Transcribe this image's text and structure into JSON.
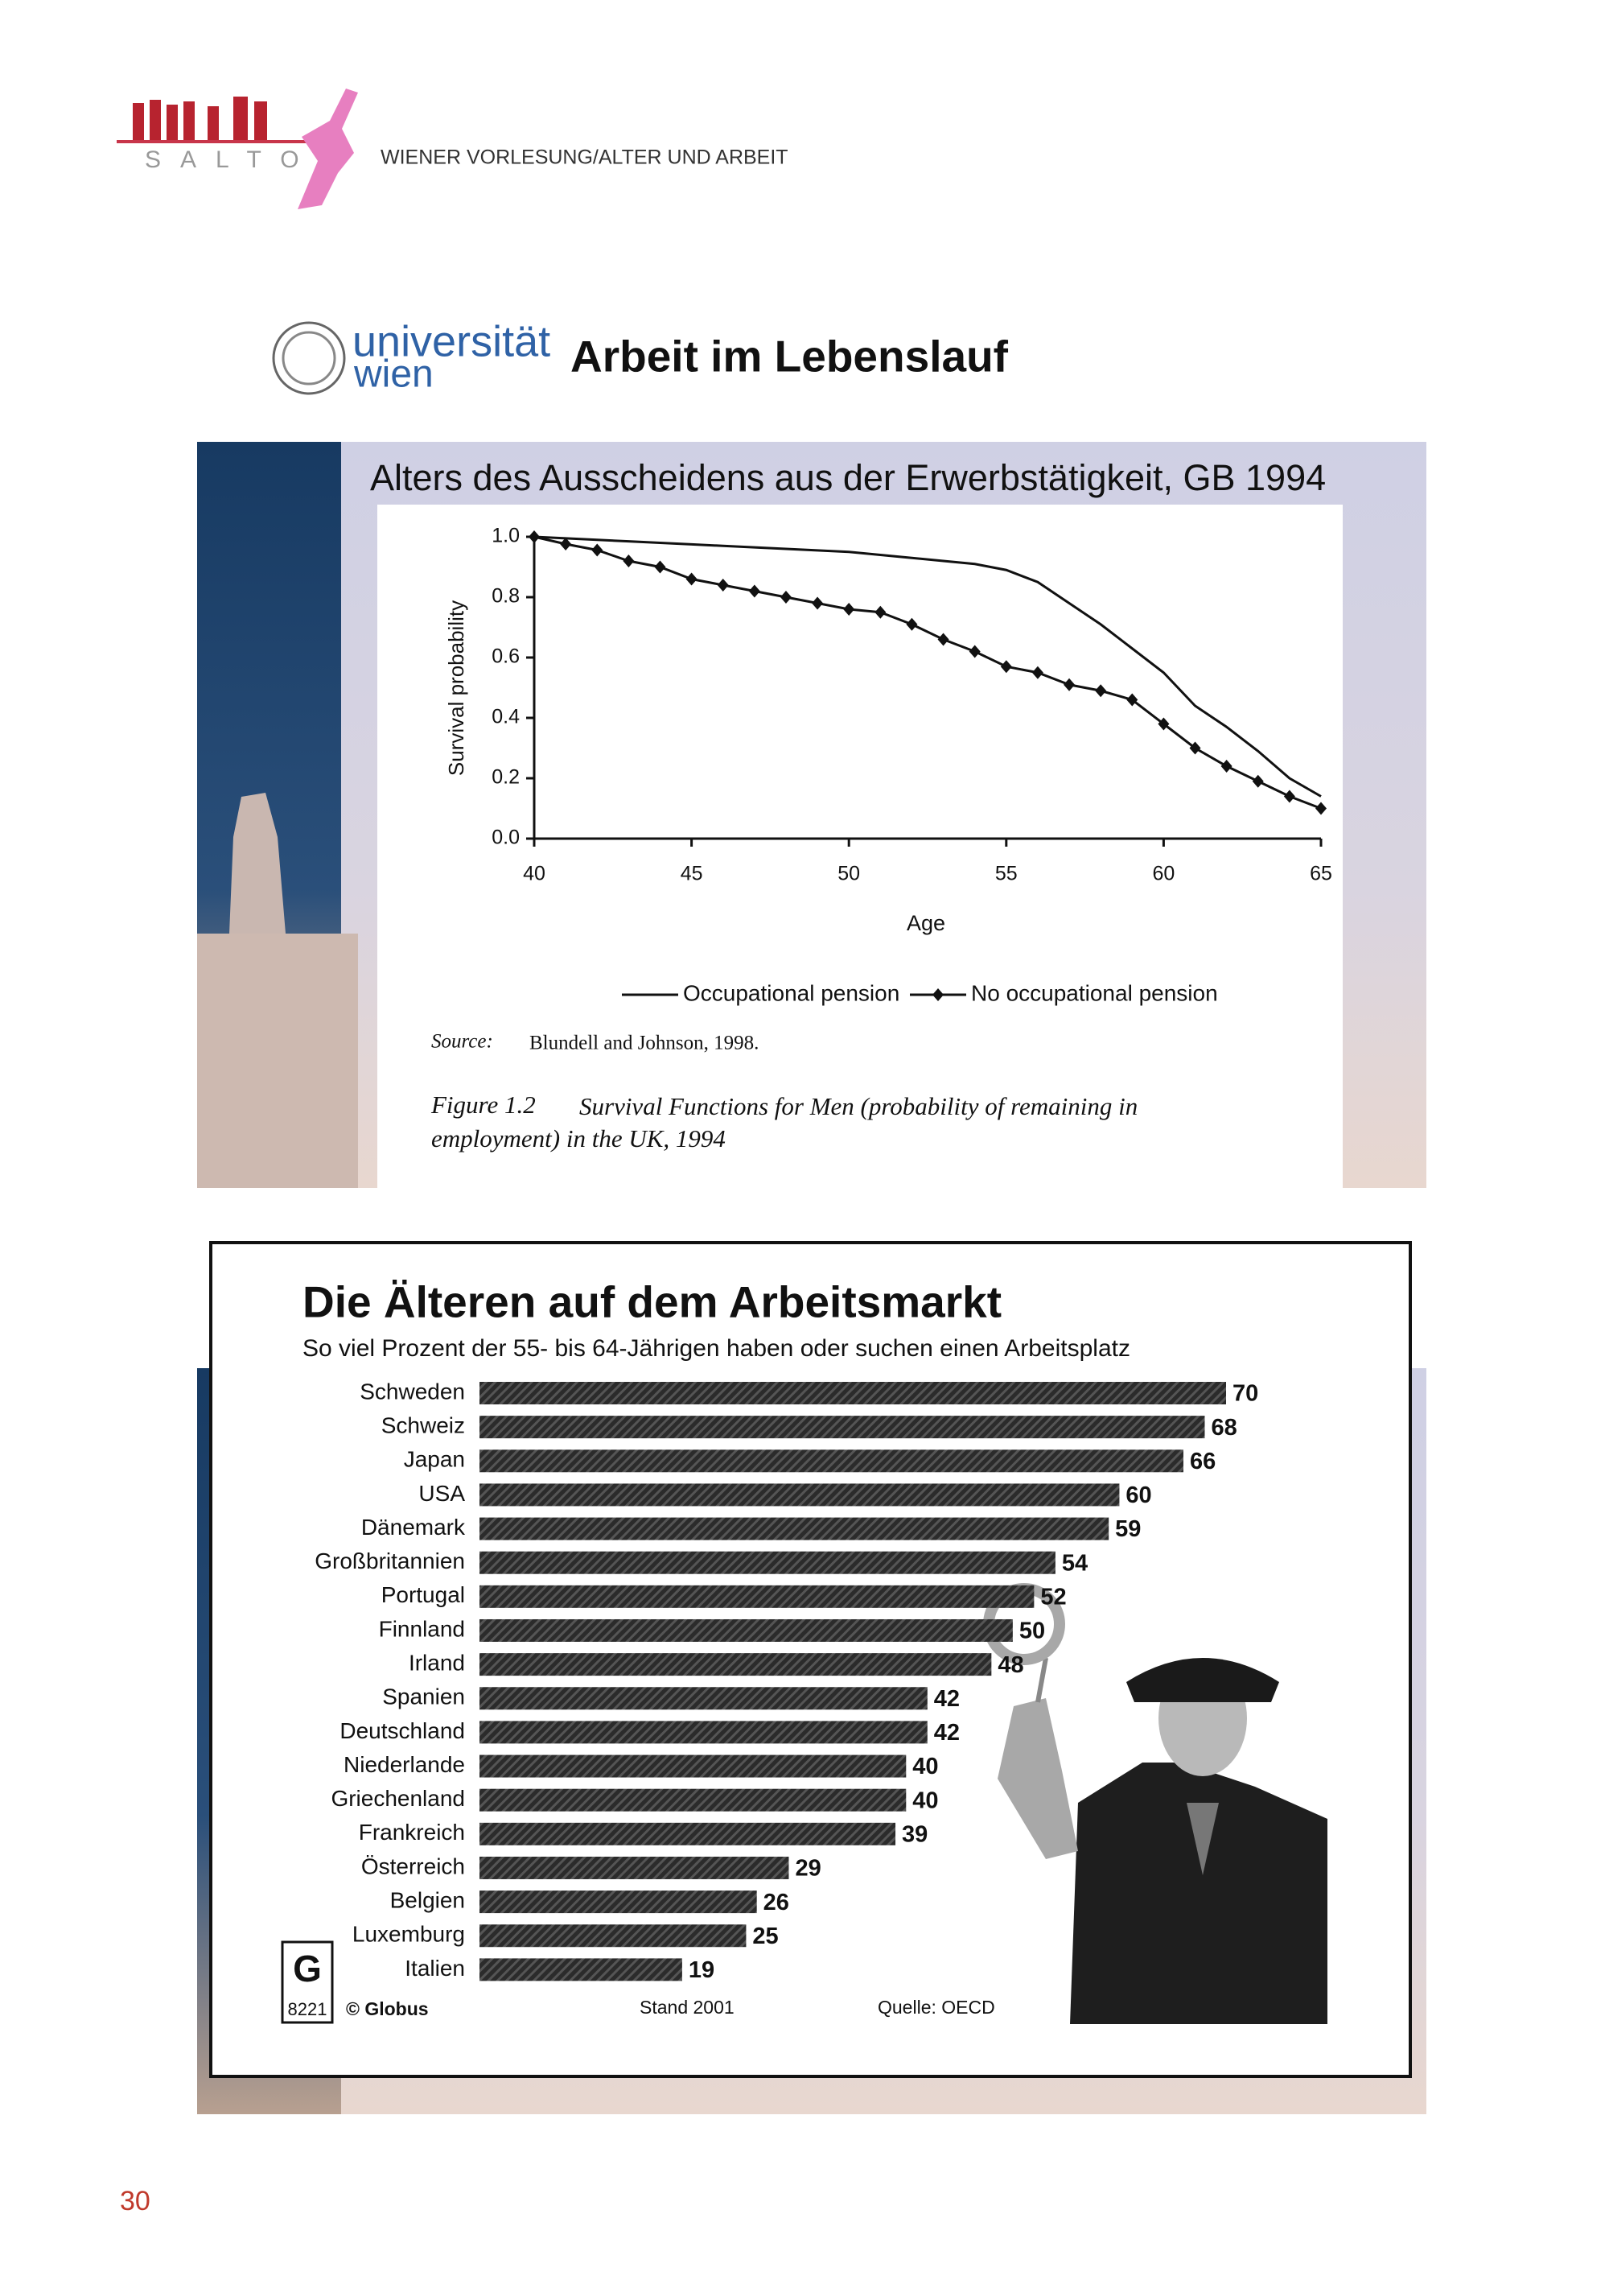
{
  "header": {
    "logo_text": "SALTO",
    "title": "WIENER VORLESUNG/ALTER UND ARBEIT"
  },
  "slide1": {
    "logo_line1": "universität",
    "logo_line2": "wien",
    "heading": "Arbeit im Lebenslauf"
  },
  "chart_data": [
    {
      "type": "line",
      "title": "Alters des Ausscheidens aus der Erwerbstätigkeit, GB 1994",
      "x_label": "Age",
      "y_label": "Survival probability",
      "x": [
        40,
        41,
        42,
        43,
        44,
        45,
        46,
        47,
        48,
        49,
        50,
        51,
        52,
        53,
        54,
        55,
        56,
        57,
        58,
        59,
        60,
        61,
        62,
        63,
        64,
        65
      ],
      "series": [
        {
          "name": "Occupational pension",
          "color": "#111111",
          "values": [
            1.0,
            0.995,
            0.99,
            0.985,
            0.98,
            0.975,
            0.97,
            0.965,
            0.96,
            0.955,
            0.95,
            0.94,
            0.93,
            0.92,
            0.91,
            0.89,
            0.85,
            0.78,
            0.71,
            0.63,
            0.55,
            0.44,
            0.37,
            0.29,
            0.2,
            0.14
          ]
        },
        {
          "name": "No occupational pension",
          "color": "#111111",
          "marker": "diamond",
          "values": [
            1.0,
            0.976,
            0.956,
            0.92,
            0.9,
            0.86,
            0.84,
            0.82,
            0.8,
            0.78,
            0.76,
            0.75,
            0.71,
            0.66,
            0.62,
            0.57,
            0.55,
            0.51,
            0.49,
            0.46,
            0.38,
            0.3,
            0.24,
            0.19,
            0.14,
            0.1
          ]
        }
      ],
      "xlim": [
        40,
        65
      ],
      "xticks": [
        40,
        45,
        50,
        55,
        60,
        65
      ],
      "ylim": [
        0,
        1
      ],
      "yticks": [
        {
          "value": 0,
          "label": "0.0"
        },
        0.2,
        0.4,
        0.6,
        0.8,
        {
          "value": 1,
          "label": "1.0"
        }
      ],
      "legend": "bottom",
      "source_label": "Source:",
      "source": "Blundell and Johnson, 1998.",
      "caption_label": "Figure 1.2",
      "caption_line1": "Survival Functions for Men (probability of remaining in",
      "caption_line2": "employment) in the UK, 1994"
    },
    {
      "type": "bar",
      "title": "Die Älteren auf dem Arbeitsmarkt",
      "subtitle": "So viel Prozent der 55- bis 64-Jährigen haben oder suchen einen Arbeitsplatz",
      "categories": [
        "Schweden",
        "Schweiz",
        "Japan",
        "USA",
        "Dänemark",
        "Großbritannien",
        "Portugal",
        "Finnland",
        "Irland",
        "Spanien",
        "Deutschland",
        "Niederlande",
        "Griechenland",
        "Frankreich",
        "Österreich",
        "Belgien",
        "Luxemburg",
        "Italien"
      ],
      "values": [
        70,
        68,
        66,
        60,
        59,
        54,
        52,
        50,
        48,
        42,
        42,
        40,
        40,
        39,
        29,
        26,
        25,
        19
      ],
      "color": "#2b2b2b",
      "code": "8221",
      "publisher": "© Globus",
      "stand": "Stand 2001",
      "source": "Quelle: OECD"
    }
  ],
  "page_number": "30"
}
